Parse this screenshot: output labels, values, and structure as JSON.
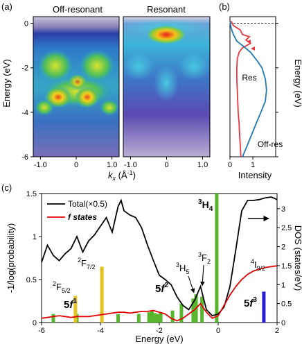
{
  "chart_data": [
    {
      "type": "heatmap",
      "panel_label": "(a)",
      "panels": [
        {
          "title": "Off-resonant"
        },
        {
          "title": "Resonant"
        }
      ],
      "ylabel": "Energy (eV)",
      "xlabel_main": "k",
      "xlabel_sub": "x",
      "xlabel_unit": " (Å",
      "xlabel_exp": "-1",
      "xlabel_close": ")",
      "ylim": [
        -6,
        0.3
      ],
      "xlim": [
        -1.2,
        1.2
      ],
      "yticks": [
        0,
        -2,
        -4,
        -6
      ],
      "xticks": [
        -1.0,
        0,
        1.0
      ],
      "xtick_labels": [
        "-1.0",
        "0",
        "1.0"
      ]
    },
    {
      "type": "line",
      "panel_label": "(b)",
      "xlabel": "Intensity",
      "ylabel": "Energy (eV)",
      "xlim": [
        0,
        2
      ],
      "ylim": [
        -6,
        0.3
      ],
      "xticks": [
        0,
        1
      ],
      "yticks": [
        0,
        -2,
        -4,
        -6
      ],
      "series": [
        {
          "name": "Res",
          "color": "#e8383d",
          "y": [
            0.1,
            -0.1,
            -0.3,
            -0.5,
            -0.6,
            -0.75,
            -0.9,
            -1.1,
            -1.3,
            -1.6,
            -2.0,
            -2.5,
            -3.0,
            -3.5,
            -4.0,
            -4.5,
            -5.0,
            -5.5,
            -6.0
          ],
          "x": [
            0.05,
            0.15,
            0.45,
            0.55,
            0.85,
            0.7,
            0.9,
            0.55,
            0.4,
            0.32,
            0.3,
            0.3,
            0.32,
            0.34,
            0.36,
            0.4,
            0.42,
            0.45,
            0.48
          ]
        },
        {
          "name": "Off-res",
          "color": "#1f77b4",
          "y": [
            0.1,
            -0.2,
            -0.5,
            -0.8,
            -1.0,
            -1.3,
            -1.7,
            -2.0,
            -2.5,
            -3.0,
            -3.5,
            -4.0,
            -4.5,
            -5.0,
            -5.5,
            -6.0
          ],
          "x": [
            0.0,
            0.05,
            0.15,
            0.3,
            0.55,
            0.9,
            1.2,
            1.4,
            1.55,
            1.6,
            1.55,
            1.35,
            1.15,
            0.95,
            0.75,
            0.55
          ]
        }
      ]
    },
    {
      "type": "line",
      "panel_label": "(c)",
      "xlabel": "Energy (eV)",
      "ylabel": "-1/log(probability)",
      "ylabel_right": "DOS (states/eV)",
      "xlim": [
        -6,
        2
      ],
      "ylim": [
        0,
        1.5
      ],
      "ylim_right": [
        0,
        3.4
      ],
      "xticks": [
        -6,
        -4,
        -2,
        0,
        2
      ],
      "yticks": [
        0,
        0.5,
        1,
        1.5
      ],
      "yticks_right": [
        0,
        0.5,
        1,
        1.5,
        2,
        2.5,
        3
      ],
      "legend": [
        {
          "label": "Total(×0.5)",
          "color": "#000000"
        },
        {
          "label": "f states",
          "color": "#e00000"
        }
      ],
      "series": [
        {
          "name": "Total(×0.5)",
          "color": "#000000",
          "x": [
            -6.0,
            -5.8,
            -5.6,
            -5.4,
            -5.2,
            -5.0,
            -4.8,
            -4.6,
            -4.4,
            -4.2,
            -4.0,
            -3.8,
            -3.6,
            -3.4,
            -3.3,
            -3.2,
            -3.0,
            -2.8,
            -2.6,
            -2.4,
            -2.2,
            -2.0,
            -1.8,
            -1.6,
            -1.4,
            -1.2,
            -1.0,
            -0.8,
            -0.6,
            -0.4,
            -0.2,
            0.0,
            0.2,
            0.4,
            0.6,
            0.8,
            1.0,
            1.2,
            1.4,
            1.6,
            1.8,
            2.0
          ],
          "y": [
            0.7,
            0.9,
            0.78,
            0.72,
            0.8,
            0.86,
            1.0,
            0.82,
            0.95,
            1.02,
            1.12,
            1.22,
            1.05,
            1.35,
            1.42,
            1.3,
            1.25,
            1.22,
            1.1,
            0.9,
            0.72,
            0.55,
            0.5,
            0.44,
            0.3,
            0.2,
            0.15,
            0.26,
            0.42,
            0.15,
            0.08,
            0.1,
            0.18,
            0.42,
            0.85,
            1.3,
            1.42,
            1.42,
            1.43,
            1.45,
            1.46,
            1.43
          ]
        },
        {
          "name": "f states",
          "color": "#e00000",
          "x": [
            -6.0,
            -5.8,
            -5.6,
            -5.4,
            -5.2,
            -5.0,
            -4.8,
            -4.6,
            -4.4,
            -4.2,
            -4.0,
            -3.8,
            -3.6,
            -3.4,
            -3.2,
            -3.0,
            -2.8,
            -2.6,
            -2.4,
            -2.2,
            -2.0,
            -1.8,
            -1.6,
            -1.4,
            -1.2,
            -1.0,
            -0.8,
            -0.6,
            -0.4,
            -0.2,
            0.0,
            0.2,
            0.4,
            0.6,
            0.8,
            1.0,
            1.2,
            1.4,
            1.6,
            1.8,
            2.0
          ],
          "y": [
            0.05,
            0.06,
            0.07,
            0.08,
            0.07,
            0.06,
            0.07,
            0.07,
            0.07,
            0.08,
            0.09,
            0.1,
            0.11,
            0.12,
            0.12,
            0.11,
            0.12,
            0.13,
            0.13,
            0.14,
            0.12,
            0.1,
            0.05,
            0.02,
            0.05,
            0.1,
            0.15,
            0.22,
            0.12,
            0.05,
            0.08,
            0.2,
            0.32,
            0.42,
            0.5,
            0.56,
            0.6,
            0.62,
            0.64,
            0.65,
            0.66
          ]
        }
      ],
      "bars": {
        "green": {
          "color": "#5ab52e",
          "x": [
            -5.6,
            -4.8,
            -3.4,
            -2.7,
            -2.35,
            -2.25,
            -2.15,
            -2.05,
            -1.95,
            -1.55,
            -1.25,
            -0.85,
            -0.75,
            -0.55,
            -0.05
          ],
          "y": [
            0.1,
            0.1,
            0.1,
            0.1,
            0.12,
            0.14,
            0.11,
            0.1,
            0.12,
            0.14,
            0.22,
            0.28,
            0.33,
            0.3,
            1.52
          ]
        },
        "yellow": {
          "color": "#e3c421",
          "x": [
            -4.85,
            -3.95
          ],
          "y": [
            0.31,
            0.65
          ]
        },
        "blue": {
          "color": "#2a1fd6",
          "x": [
            1.55
          ],
          "y": [
            0.36
          ]
        }
      },
      "annotations": {
        "F52": {
          "sup": "2",
          "base": "F",
          "sub": "5/2"
        },
        "F72": {
          "sup": "2",
          "base": "F",
          "sub": "7/2"
        },
        "f1": {
          "num": "5",
          "f": "f",
          "sup": "1"
        },
        "f2": {
          "num": "5",
          "f": "f",
          "sup": "2"
        },
        "H5": {
          "sup": "3",
          "base": "H",
          "sub": "5"
        },
        "F2": {
          "sup": "3",
          "base": "F",
          "sub": "2"
        },
        "H4": {
          "sup": "3",
          "base": "H",
          "sub": "4"
        },
        "I92": {
          "sup": "4",
          "base": "I",
          "sub": "9/2"
        },
        "f3": {
          "num": "5",
          "f": "f",
          "sup": "3"
        }
      }
    }
  ]
}
